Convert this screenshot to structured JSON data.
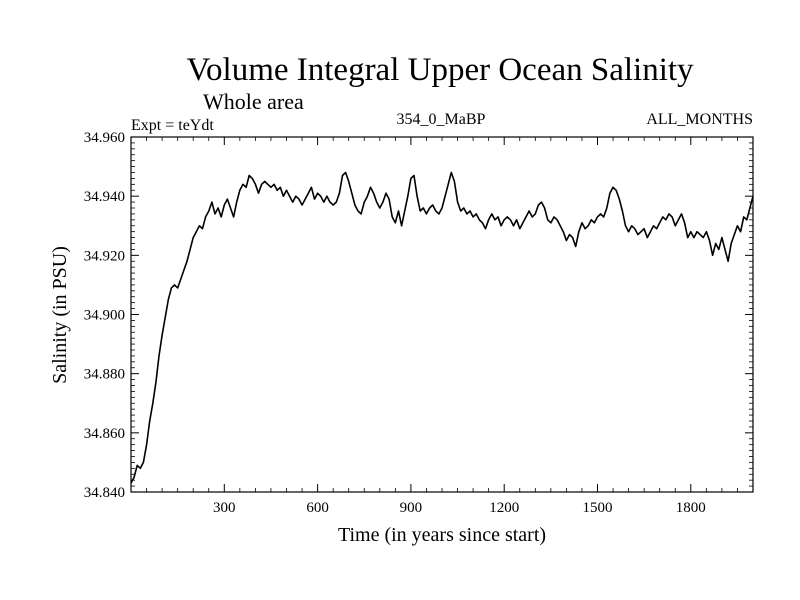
{
  "chart_data": {
    "type": "line",
    "title": "Volume Integral Upper Ocean Salinity",
    "subtitle": "Whole area",
    "experiment_label": "Expt = teYdt",
    "period_label": "354_0_MaBP",
    "months_label": "ALL_MONTHS",
    "xlabel": "Time (in years since start)",
    "ylabel": "Salinity (in PSU)",
    "xlim": [
      0,
      2000
    ],
    "ylim": [
      34.84,
      34.96
    ],
    "x_ticks": [
      300,
      600,
      900,
      1200,
      1500,
      1800
    ],
    "x_tick_labels": [
      "300",
      "600",
      "900",
      "1200",
      "1500",
      "1800"
    ],
    "y_ticks": [
      34.84,
      34.86,
      34.88,
      34.9,
      34.92,
      34.94,
      34.96
    ],
    "y_tick_labels": [
      "34.840",
      "34.860",
      "34.880",
      "34.900",
      "34.920",
      "34.940",
      "34.960"
    ],
    "series": [
      {
        "name": "salinity",
        "x": [
          0,
          10,
          20,
          30,
          40,
          50,
          60,
          70,
          80,
          90,
          100,
          110,
          120,
          130,
          140,
          150,
          160,
          170,
          180,
          190,
          200,
          210,
          220,
          230,
          240,
          250,
          260,
          270,
          280,
          290,
          300,
          310,
          320,
          330,
          340,
          350,
          360,
          370,
          380,
          390,
          400,
          410,
          420,
          430,
          440,
          450,
          460,
          470,
          480,
          490,
          500,
          510,
          520,
          530,
          540,
          550,
          560,
          570,
          580,
          590,
          600,
          610,
          620,
          630,
          640,
          650,
          660,
          670,
          680,
          690,
          700,
          710,
          720,
          730,
          740,
          750,
          760,
          770,
          780,
          790,
          800,
          810,
          820,
          830,
          840,
          850,
          860,
          870,
          880,
          890,
          900,
          910,
          920,
          930,
          940,
          950,
          960,
          970,
          980,
          990,
          1000,
          1010,
          1020,
          1030,
          1040,
          1050,
          1060,
          1070,
          1080,
          1090,
          1100,
          1110,
          1120,
          1130,
          1140,
          1150,
          1160,
          1170,
          1180,
          1190,
          1200,
          1210,
          1220,
          1230,
          1240,
          1250,
          1260,
          1270,
          1280,
          1290,
          1300,
          1310,
          1320,
          1330,
          1340,
          1350,
          1360,
          1370,
          1380,
          1390,
          1400,
          1410,
          1420,
          1430,
          1440,
          1450,
          1460,
          1470,
          1480,
          1490,
          1500,
          1510,
          1520,
          1530,
          1540,
          1550,
          1560,
          1570,
          1580,
          1590,
          1600,
          1610,
          1620,
          1630,
          1640,
          1650,
          1660,
          1670,
          1680,
          1690,
          1700,
          1710,
          1720,
          1730,
          1740,
          1750,
          1760,
          1770,
          1780,
          1790,
          1800,
          1810,
          1820,
          1830,
          1840,
          1850,
          1860,
          1870,
          1880,
          1890,
          1900,
          1910,
          1920,
          1930,
          1940,
          1950,
          1960,
          1970,
          1980,
          1990,
          2000
        ],
        "values": [
          34.843,
          34.845,
          34.849,
          34.848,
          34.85,
          34.856,
          34.864,
          34.87,
          34.877,
          34.886,
          34.893,
          34.899,
          34.905,
          34.909,
          34.91,
          34.909,
          34.912,
          34.915,
          34.918,
          34.922,
          34.926,
          34.928,
          34.93,
          34.929,
          34.933,
          34.935,
          34.938,
          34.934,
          34.936,
          34.933,
          34.937,
          34.939,
          34.936,
          34.933,
          34.938,
          34.942,
          34.944,
          34.943,
          34.947,
          34.946,
          34.944,
          34.941,
          34.944,
          34.945,
          34.944,
          34.943,
          34.944,
          34.942,
          34.943,
          34.94,
          34.942,
          34.94,
          34.938,
          34.94,
          34.939,
          34.937,
          34.939,
          34.941,
          34.943,
          34.939,
          34.941,
          34.94,
          34.938,
          34.94,
          34.938,
          34.937,
          34.938,
          34.941,
          34.947,
          34.948,
          34.945,
          34.941,
          34.937,
          34.935,
          34.934,
          34.938,
          34.94,
          34.943,
          34.941,
          34.938,
          34.936,
          34.938,
          34.941,
          34.939,
          34.933,
          34.931,
          34.935,
          34.93,
          34.935,
          34.94,
          34.946,
          34.947,
          34.94,
          34.935,
          34.936,
          34.934,
          34.936,
          34.937,
          34.935,
          34.934,
          34.936,
          34.94,
          34.944,
          34.948,
          34.945,
          34.938,
          34.935,
          34.936,
          34.934,
          34.935,
          34.933,
          34.934,
          34.932,
          34.931,
          34.929,
          34.932,
          34.934,
          34.932,
          34.933,
          34.93,
          34.932,
          34.933,
          34.932,
          34.93,
          34.932,
          34.929,
          34.931,
          34.933,
          34.935,
          34.933,
          34.934,
          34.937,
          34.938,
          34.936,
          34.932,
          34.931,
          34.933,
          34.932,
          34.93,
          34.928,
          34.925,
          34.927,
          34.926,
          34.923,
          34.928,
          34.931,
          34.929,
          34.93,
          34.932,
          34.931,
          34.933,
          34.934,
          34.933,
          34.936,
          34.941,
          34.943,
          34.942,
          34.939,
          34.935,
          34.93,
          34.928,
          34.93,
          34.929,
          34.927,
          34.928,
          34.929,
          34.926,
          34.928,
          34.93,
          34.929,
          34.931,
          34.933,
          34.932,
          34.934,
          34.933,
          34.93,
          34.932,
          34.934,
          34.931,
          34.926,
          34.928,
          34.926,
          34.928,
          34.927,
          34.926,
          34.928,
          34.925,
          34.92,
          34.924,
          34.922,
          34.926,
          34.922,
          34.918,
          34.924,
          34.927,
          34.93,
          34.928,
          34.933,
          34.932,
          34.936,
          34.94
        ]
      }
    ]
  },
  "colors": {
    "background": "#ffffff",
    "ink": "#000000"
  }
}
